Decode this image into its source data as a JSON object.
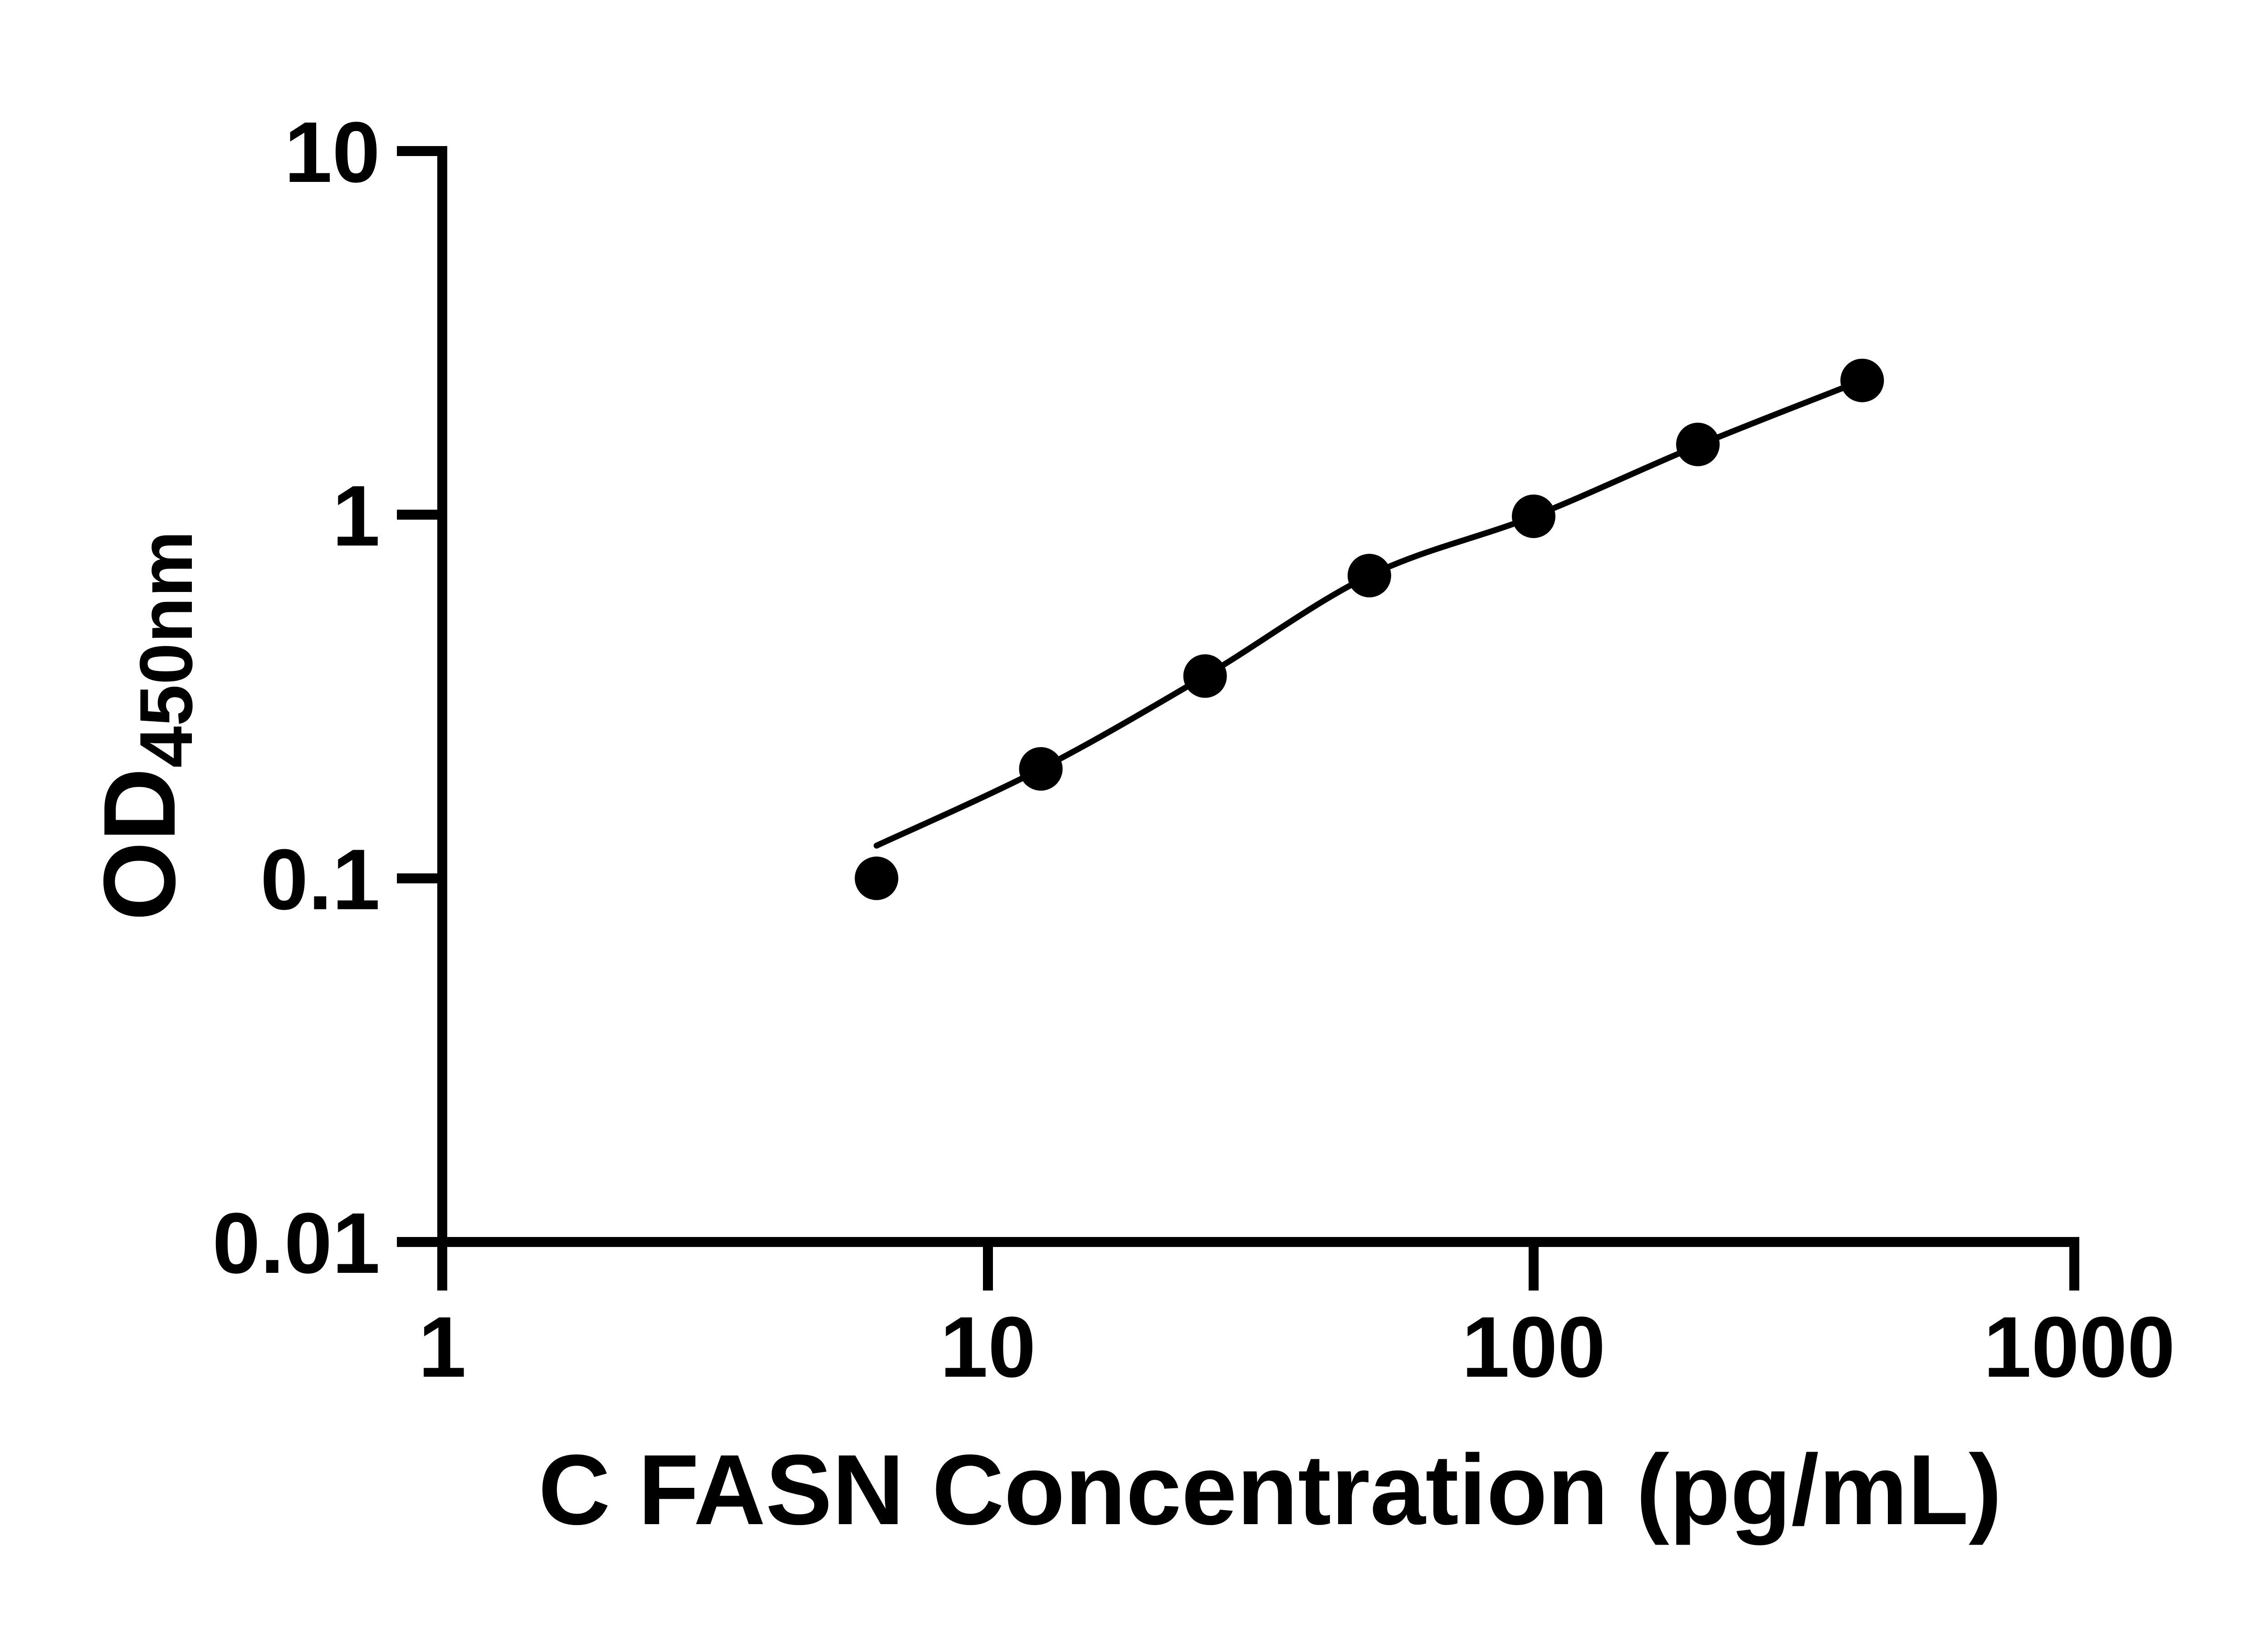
{
  "figure": {
    "background_color": "#ffffff",
    "foreground_color": "#000000"
  },
  "chart_data": {
    "type": "scatter",
    "title": "",
    "xlabel": "C FASN Concentration (pg/mL)",
    "ylabel": "OD450nm",
    "ylabel_base": "OD",
    "ylabel_sub": "450nm",
    "x_scale": "log10",
    "y_scale": "log10",
    "xlim": [
      1,
      1000
    ],
    "ylim": [
      0.01,
      10
    ],
    "x_ticks": [
      1,
      10,
      100,
      1000
    ],
    "x_tick_labels": [
      "1",
      "10",
      "100",
      "1000"
    ],
    "y_ticks": [
      10,
      1,
      0.1,
      0.01
    ],
    "y_tick_labels": [
      "10",
      "1",
      "0.1",
      "0.01"
    ],
    "grid": false,
    "legend_position": "none",
    "marker": "filled-circle",
    "marker_color": "#000000",
    "line_color": "#000000",
    "series": [
      {
        "name": "standard-curve-points",
        "x": [
          6.25,
          12.5,
          25,
          50,
          100,
          200,
          400
        ],
        "y": [
          0.1,
          0.2,
          0.36,
          0.68,
          0.99,
          1.56,
          2.34
        ]
      }
    ],
    "fit_curve": {
      "x": [
        6.25,
        12.5,
        25,
        50,
        100,
        200,
        400
      ],
      "od": [
        0.123,
        0.2,
        0.36,
        0.68,
        0.99,
        1.55,
        2.34
      ]
    }
  }
}
